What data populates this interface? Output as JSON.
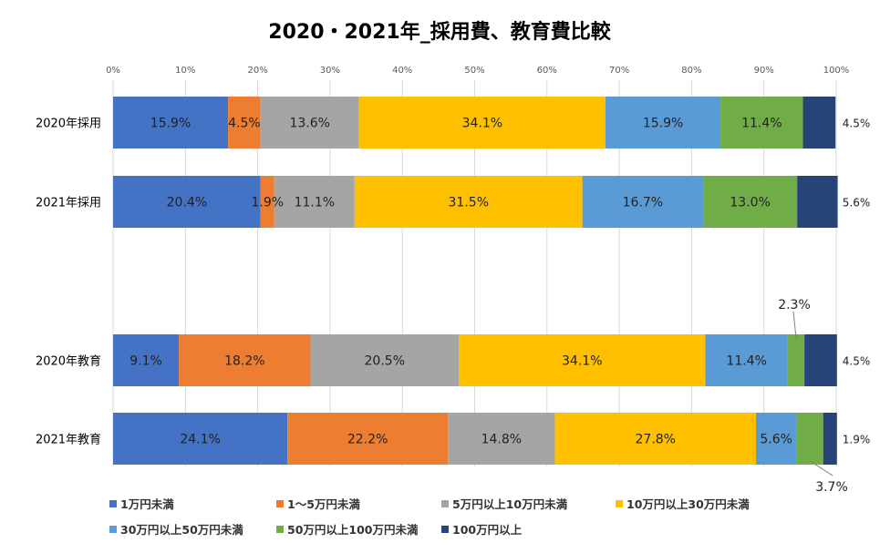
{
  "chart_data": {
    "type": "bar",
    "orientation": "horizontal",
    "stacked": "100%",
    "title": "2020・2021年_採用費、教育費比較",
    "x_axis": {
      "ticks": [
        "0%",
        "10%",
        "20%",
        "30%",
        "40%",
        "50%",
        "60%",
        "70%",
        "80%",
        "90%",
        "100%"
      ],
      "range": [
        0,
        100
      ],
      "position": "top",
      "grid": true
    },
    "categories": [
      "2020年採用",
      "2021年採用",
      "2020年教育",
      "2021年教育"
    ],
    "series": [
      {
        "name": "1万円未満",
        "color": "#4472C4",
        "values": [
          15.9,
          20.4,
          9.1,
          24.1
        ],
        "labels": [
          "15.9%",
          "20.4%",
          "9.1%",
          "24.1%"
        ]
      },
      {
        "name": "1～5万円未満",
        "color": "#ED7D31",
        "values": [
          4.5,
          1.9,
          18.2,
          22.2
        ],
        "labels": [
          "4.5%",
          "1.9%",
          "18.2%",
          "22.2%"
        ]
      },
      {
        "name": "5万円以上10万円未満",
        "color": "#A5A5A5",
        "values": [
          13.6,
          11.1,
          20.5,
          14.8
        ],
        "labels": [
          "13.6%",
          "11.1%",
          "20.5%",
          "14.8%"
        ]
      },
      {
        "name": "10万円以上30万円未満",
        "color": "#FFC000",
        "values": [
          34.1,
          31.5,
          34.1,
          27.8
        ],
        "labels": [
          "34.1%",
          "31.5%",
          "34.1%",
          "27.8%"
        ]
      },
      {
        "name": "30万円以上50万円未満",
        "color": "#5B9BD5",
        "values": [
          15.9,
          16.7,
          11.4,
          5.6
        ],
        "labels": [
          "15.9%",
          "16.7%",
          "11.4%",
          "5.6%"
        ]
      },
      {
        "name": "50万円以上100万円未満",
        "color": "#70AD47",
        "values": [
          11.4,
          13.0,
          2.3,
          3.7
        ],
        "labels": [
          "11.4%",
          "13.0%",
          "2.3%",
          "3.7%"
        ]
      },
      {
        "name": "100万円以上",
        "color": "#264478",
        "values": [
          4.5,
          5.6,
          4.5,
          1.9
        ],
        "labels": [
          "4.5%",
          "5.6%",
          "4.5%",
          "1.9%"
        ]
      }
    ],
    "outside_labels": [
      "4.5%",
      "5.6%",
      "4.5%",
      "1.9%"
    ],
    "callouts": [
      "2.3%",
      "3.7%"
    ],
    "legend": {
      "position": "bottom",
      "rows": [
        [
          "1万円未満",
          "1～5万円未満",
          "5万円以上10万円未満",
          "10万円以上30万円未満"
        ],
        [
          "30万円以上50万円未満",
          "50万円以上100万円未満",
          "100万円以上"
        ]
      ]
    }
  }
}
